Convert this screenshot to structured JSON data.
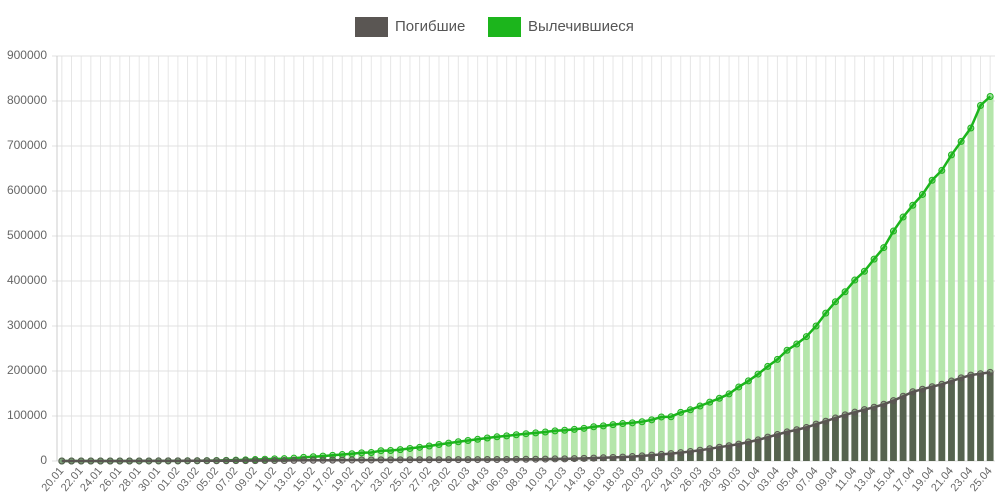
{
  "chart_data": {
    "type": "bar",
    "categories": [
      "20.01",
      null,
      "22.01",
      null,
      "24.01",
      null,
      "26.01",
      null,
      "28.01",
      null,
      "30.01",
      null,
      "01.02",
      null,
      "03.02",
      null,
      "05.02",
      null,
      "07.02",
      null,
      "09.02",
      null,
      "11.02",
      null,
      "13.02",
      null,
      "15.02",
      null,
      "17.02",
      null,
      "19.02",
      null,
      "21.02",
      null,
      "23.02",
      null,
      "25.02",
      null,
      "27.02",
      null,
      "29.02",
      null,
      "02.03",
      null,
      "04.03",
      null,
      "06.03",
      null,
      "08.03",
      null,
      "10.03",
      null,
      "12.03",
      null,
      "14.03",
      null,
      "16.03",
      null,
      "18.03",
      null,
      "20.03",
      null,
      "22.03",
      null,
      "24.03",
      null,
      "26.03",
      null,
      "28.03",
      null,
      "30.03",
      null,
      "01.04",
      null,
      "03.04",
      null,
      "05.04",
      null,
      "07.04",
      null,
      "09.04",
      null,
      "11.04",
      null,
      "13.04",
      null,
      "15.04",
      null,
      "17.04",
      null,
      "19.04",
      null,
      "21.04",
      null,
      "23.04",
      null,
      "25.04"
    ],
    "series": [
      {
        "name": "Вылечившиеся",
        "color": "#1cb51c",
        "values": [
          0,
          0,
          28,
          30,
          36,
          39,
          52,
          61,
          107,
          126,
          143,
          222,
          284,
          472,
          623,
          852,
          1124,
          1487,
          2011,
          2616,
          3244,
          3946,
          4683,
          5150,
          6295,
          8058,
          9395,
          10865,
          12583,
          14352,
          16121,
          18177,
          18890,
          22886,
          23394,
          25227,
          27905,
          30384,
          33277,
          36711,
          39782,
          42716,
          45602,
          48228,
          51170,
          53796,
          55865,
          58358,
          60694,
          62494,
          64404,
          67003,
          68324,
          70251,
          72624,
          76034,
          78088,
          80840,
          83207,
          84854,
          87256,
          91499,
          97882,
          98351,
          108000,
          113770,
          122150,
          130915,
          139415,
          149082,
          164566,
          178034,
          193177,
          210263,
          225796,
          246152,
          260012,
          276515,
          300054,
          328661,
          353975,
          376096,
          402110,
          421722,
          448655,
          474261,
          511019,
          542107,
          568343,
          592319,
          623903,
          645738,
          680319,
          710263,
          740080,
          790000,
          810000
        ]
      },
      {
        "name": "Погибшие",
        "color": "#5a5653",
        "values": [
          0,
          6,
          17,
          18,
          26,
          42,
          56,
          82,
          131,
          133,
          171,
          213,
          259,
          362,
          426,
          492,
          564,
          634,
          719,
          806,
          906,
          1013,
          1113,
          1118,
          1371,
          1523,
          1666,
          1770,
          1868,
          2007,
          2122,
          2247,
          2251,
          2458,
          2469,
          2629,
          2708,
          2770,
          2814,
          2872,
          2941,
          2996,
          3085,
          3160,
          3254,
          3348,
          3460,
          3558,
          3802,
          3988,
          4262,
          4615,
          4720,
          5404,
          5819,
          6440,
          7126,
          7905,
          8733,
          9867,
          11299,
          12973,
          14623,
          16497,
          18615,
          21181,
          23970,
          27198,
          30652,
          33925,
          37582,
          42107,
          46809,
          52983,
          58787,
          64606,
          69374,
          74565,
          81865,
          88338,
          95455,
          102525,
          108503,
          114091,
          119482,
          125984,
          134177,
          143800,
          153822,
          159510,
          165044,
          170423,
          177641,
          184681,
          190858,
          194000,
          197000
        ]
      }
    ],
    "ylim": [
      0,
      900000
    ],
    "yticks": [
      0,
      100000,
      200000,
      300000,
      400000,
      500000,
      600000,
      700000,
      800000,
      900000
    ],
    "grid": true
  }
}
